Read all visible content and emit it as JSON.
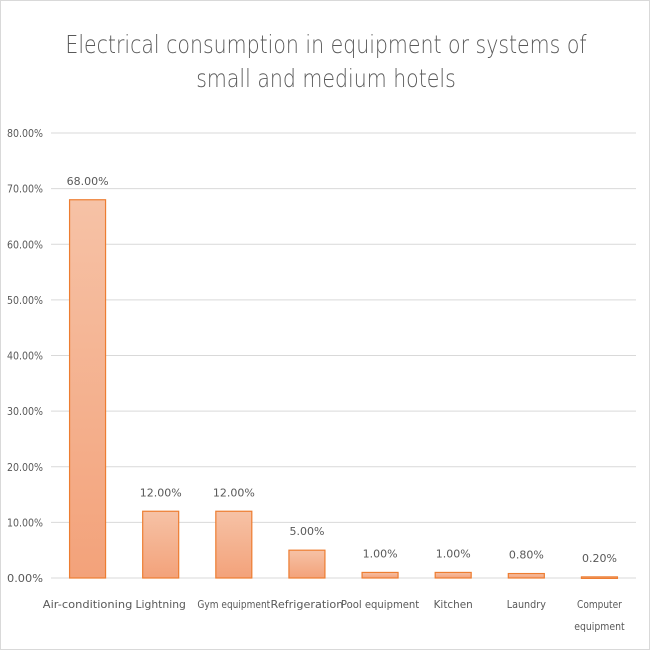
{
  "chart_data": {
    "type": "bar",
    "title_lines": [
      "Electrical consumption in equipment or systems of",
      "small and medium hotels"
    ],
    "categories": [
      "Air-conditioning",
      "Lightning",
      "Gym equipment",
      "Refrigeration",
      "Pool equipment",
      "Kitchen",
      "Laundry",
      "Computer equipment"
    ],
    "category_lines": [
      [
        "Air-conditioning"
      ],
      [
        "Lightning"
      ],
      [
        "Gym equipment"
      ],
      [
        "Refrigeration"
      ],
      [
        "Pool equipment"
      ],
      [
        "Kitchen"
      ],
      [
        "Laundry"
      ],
      [
        "Computer",
        "equipment"
      ]
    ],
    "values": [
      68,
      12,
      12,
      5,
      1,
      1,
      0.8,
      0.2
    ],
    "data_labels": [
      "68.00%",
      "12.00%",
      "12.00%",
      "5.00%",
      "1.00%",
      "1.00%",
      "0.80%",
      "0.20%"
    ],
    "yticks": [
      0,
      10,
      20,
      30,
      40,
      50,
      60,
      70,
      80
    ],
    "ytick_labels": [
      "0.00%",
      "10.00%",
      "20.00%",
      "30.00%",
      "40.00%",
      "50.00%",
      "60.00%",
      "70.00%",
      "80.00%"
    ],
    "ylim": [
      0,
      80
    ],
    "grid": true,
    "xlabel": "",
    "ylabel": "",
    "colors": {
      "bar_fill_top": "#F6C2A6",
      "bar_fill_bottom": "#F3A27A",
      "bar_stroke": "#ED7D31",
      "grid": "#D9D9D9",
      "text": "#595959"
    }
  }
}
